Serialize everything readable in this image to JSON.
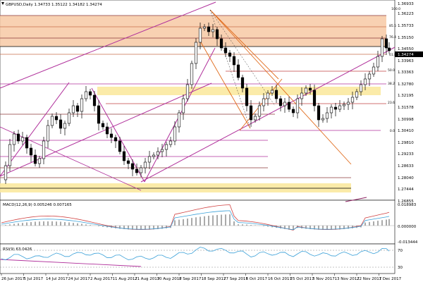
{
  "window": {
    "symbol_header": "GBPUSD,Daily  1.34733  1.35122  1.34182  1.34274",
    "macd_header": "MACD(12,26,9)  0.005246  0.007165",
    "rsi_header": "RSI(9) 63.0426",
    "current_price": "1.34274"
  },
  "price_axis": [
    "1.36933",
    "1.36223",
    "1.35733",
    "1.35150",
    "1.34550",
    "1.33963",
    "1.33363",
    "1.32780",
    "1.32195",
    "1.31578",
    "1.30998",
    "1.30410",
    "1.29810",
    "1.29233",
    "1.28633",
    "1.28040",
    "1.27444",
    "1.26855"
  ],
  "macd_axis": [
    "0.018983",
    "0.000000",
    "-0.013444"
  ],
  "rsi_axis": [
    "70",
    "30"
  ],
  "date_axis": [
    "26 Jun 2017",
    "5 Jul 2017",
    "14 Jul 2017",
    "24 Jul 2017",
    "2 Aug 2017",
    "11 Aug 2017",
    "21 Aug 2017",
    "30 Aug 2017",
    "8 Sep 2017",
    "18 Sep 2017",
    "27 Sep 2017",
    "6 Oct 2017",
    "16 Oct 2017",
    "25 Oct 2017",
    "3 Nov 2017",
    "13 Nov 2017",
    "22 Nov 2017",
    "1 Dec 2017"
  ],
  "fib_levels": [
    "100.0",
    "85.5",
    "76.4",
    "61.8",
    "50.0",
    "38.2",
    "23.6",
    "0.0"
  ],
  "colors": {
    "bull": "#ffffff",
    "bear": "#000000",
    "fib_zone": "#f7c9a5",
    "yellow_zone": "#fbe9a0",
    "channel": "#b0309b",
    "fan": "#e06a1a",
    "hline": "#8b3a3a",
    "price_box": "#000000"
  },
  "chart_data": {
    "type": "candlestick",
    "symbol": "GBPUSD",
    "timeframe": "Daily",
    "last": {
      "open": 1.34733,
      "high": 1.35122,
      "low": 1.34182,
      "close": 1.34274
    },
    "x_range": [
      "26 Jun 2017",
      "1 Dec 2017"
    ],
    "ylim": [
      1.26855,
      1.36933
    ],
    "indicators": [
      {
        "name": "MACD(12,26,9)",
        "values": [
          0.005246,
          0.007165
        ],
        "ylim": [
          -0.013444,
          0.018983
        ]
      },
      {
        "name": "RSI(9)",
        "value": 63.0426,
        "levels": [
          30,
          70
        ]
      }
    ]
  }
}
